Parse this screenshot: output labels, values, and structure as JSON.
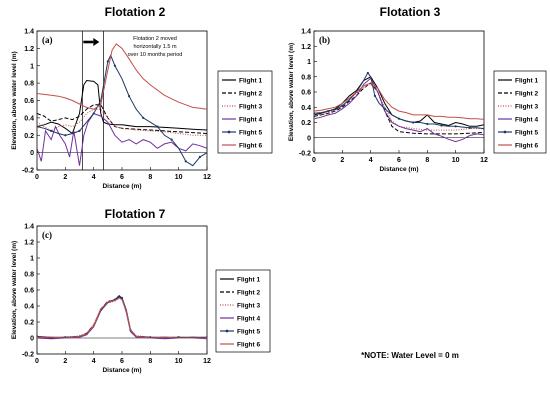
{
  "series_styles": [
    {
      "name": "Flight 1",
      "color": "#000000",
      "dash": "",
      "marker": false
    },
    {
      "name": "Flight 2",
      "color": "#000000",
      "dash": "4,2",
      "marker": false
    },
    {
      "name": "Flight 3",
      "color": "#c0504d",
      "dash": "1,1.5",
      "marker": false
    },
    {
      "name": "Flight 4",
      "color": "#7030a0",
      "dash": "",
      "marker": false
    },
    {
      "name": "Flight 5",
      "color": "#1f3864",
      "dash": "",
      "marker": true
    },
    {
      "name": "Flight 6",
      "color": "#c0504d",
      "dash": "",
      "marker": false
    }
  ],
  "note": "*NOTE: Water Level = 0 m",
  "chart_data": [
    {
      "type": "line",
      "title": "Flotation 2",
      "panel_label": "(a)",
      "annotation": [
        "Flotation  2 moved",
        "horizontally  1.5 m",
        "over 10 months  period"
      ],
      "xlabel": "Distance (m)",
      "ylabel": "Elevation, above water level (m)",
      "xlim": [
        0,
        12
      ],
      "ylim": [
        -0.2,
        1.4
      ],
      "xticks": [
        "0",
        "2",
        "4",
        "6",
        "8",
        "10",
        "12"
      ],
      "yticks": [
        "-0.2",
        "0",
        "0.2",
        "0.4",
        "0.6",
        "0.8",
        "1",
        "1.2",
        "1.4"
      ],
      "vlines_x": [
        3.2,
        4.7
      ],
      "legend_position": "right",
      "series": [
        {
          "name": "Flight 1",
          "x": [
            0,
            0.5,
            1,
            1.5,
            2,
            2.5,
            3,
            3.3,
            3.5,
            4,
            4.3,
            4.5,
            4.7,
            5,
            5.5,
            6,
            7,
            8,
            9,
            10,
            11,
            12
          ],
          "y": [
            0.3,
            0.32,
            0.35,
            0.33,
            0.28,
            0.22,
            0.45,
            0.78,
            0.83,
            0.82,
            0.78,
            0.45,
            0.35,
            0.33,
            0.32,
            0.32,
            0.3,
            0.3,
            0.29,
            0.28,
            0.27,
            0.26
          ]
        },
        {
          "name": "Flight 2",
          "x": [
            0,
            0.5,
            1,
            1.5,
            2,
            2.5,
            3,
            3.5,
            4,
            4.5,
            5,
            5.5,
            6,
            7,
            8,
            9,
            10,
            11,
            12
          ],
          "y": [
            0.45,
            0.42,
            0.36,
            0.38,
            0.4,
            0.38,
            0.42,
            0.5,
            0.55,
            0.55,
            0.4,
            0.3,
            0.28,
            0.27,
            0.26,
            0.25,
            0.24,
            0.23,
            0.22
          ]
        },
        {
          "name": "Flight 3",
          "x": [
            0,
            0.5,
            1,
            1.5,
            2,
            2.5,
            3,
            3.5,
            4,
            4.5,
            5,
            5.5,
            6,
            7,
            8,
            9,
            10,
            11,
            12
          ],
          "y": [
            0.35,
            0.3,
            0.25,
            0.3,
            0.32,
            0.3,
            0.35,
            0.45,
            0.5,
            0.5,
            0.4,
            0.3,
            0.28,
            0.26,
            0.25,
            0.24,
            0.22,
            0.2,
            0.2
          ]
        },
        {
          "name": "Flight 4",
          "x": [
            0,
            0.3,
            0.6,
            1,
            1.3,
            1.6,
            2,
            2.3,
            2.6,
            3,
            3.3,
            3.6,
            4,
            4.5,
            5,
            5.5,
            6,
            6.5,
            7,
            7.5,
            8,
            8.5,
            9,
            9.5,
            10,
            10.5,
            11,
            11.5,
            12
          ],
          "y": [
            0.05,
            -0.1,
            0.25,
            0.15,
            0.3,
            0.2,
            0.1,
            -0.05,
            0.25,
            -0.15,
            0.2,
            0.35,
            0.45,
            0.42,
            0.35,
            0.2,
            0.12,
            0.15,
            0.1,
            0.15,
            0.12,
            0.05,
            0.1,
            0.12,
            0.05,
            0.02,
            0.1,
            0.08,
            0.05
          ]
        },
        {
          "name": "Flight 5",
          "x": [
            0,
            0.5,
            1,
            1.5,
            2,
            2.5,
            3,
            3.5,
            4,
            4.5,
            5,
            5.2,
            5.5,
            6,
            6.5,
            7,
            7.5,
            8,
            8.5,
            9,
            9.5,
            10,
            10.5,
            11,
            11.5,
            12
          ],
          "y": [
            0.3,
            0.28,
            0.25,
            0.22,
            0.2,
            0.22,
            0.25,
            0.35,
            0.45,
            0.6,
            1.05,
            1.12,
            1.0,
            0.85,
            0.65,
            0.5,
            0.4,
            0.35,
            0.3,
            0.2,
            0.15,
            0.05,
            -0.1,
            -0.15,
            -0.05,
            0.0
          ]
        },
        {
          "name": "Flight 6",
          "x": [
            0,
            0.5,
            1,
            1.5,
            2,
            2.5,
            3,
            3.5,
            4,
            4.5,
            5,
            5.3,
            5.6,
            6,
            6.5,
            7,
            7.5,
            8,
            8.5,
            9,
            9.5,
            10,
            10.5,
            11,
            11.5,
            12
          ],
          "y": [
            0.68,
            0.67,
            0.66,
            0.65,
            0.63,
            0.6,
            0.56,
            0.52,
            0.5,
            0.55,
            0.95,
            1.18,
            1.25,
            1.2,
            1.08,
            0.95,
            0.85,
            0.78,
            0.72,
            0.66,
            0.62,
            0.58,
            0.55,
            0.52,
            0.51,
            0.5
          ]
        }
      ]
    },
    {
      "type": "line",
      "title": "Flotation 3",
      "panel_label": "(b)",
      "xlabel": "Distance (m)",
      "ylabel": "Elevation, above water level (m)",
      "xlim": [
        0,
        12
      ],
      "ylim": [
        -0.2,
        1.4
      ],
      "xticks": [
        "0",
        "2",
        "4",
        "6",
        "8",
        "10",
        "12"
      ],
      "yticks": [
        "-0.2",
        "0",
        "0.2",
        "0.4",
        "0.6",
        "0.8",
        "1",
        "1.2",
        "1.4"
      ],
      "legend_position": "right",
      "series": [
        {
          "name": "Flight 1",
          "x": [
            0,
            0.5,
            1,
            1.5,
            2,
            2.5,
            3,
            3.5,
            4,
            4.5,
            5,
            5.5,
            6,
            6.5,
            7,
            7.5,
            8,
            8.5,
            9,
            9.5,
            10,
            10.5,
            11,
            11.5,
            12
          ],
          "y": [
            0.3,
            0.32,
            0.35,
            0.38,
            0.45,
            0.55,
            0.62,
            0.75,
            0.8,
            0.65,
            0.45,
            0.3,
            0.25,
            0.22,
            0.2,
            0.22,
            0.3,
            0.2,
            0.18,
            0.16,
            0.2,
            0.18,
            0.15,
            0.15,
            0.17
          ]
        },
        {
          "name": "Flight 2",
          "x": [
            0,
            0.5,
            1,
            1.5,
            2,
            2.5,
            3,
            3.5,
            4,
            4.5,
            5,
            5.5,
            6,
            7,
            8,
            9,
            10,
            11,
            12
          ],
          "y": [
            0.28,
            0.3,
            0.32,
            0.35,
            0.4,
            0.48,
            0.55,
            0.65,
            0.72,
            0.6,
            0.35,
            0.15,
            0.08,
            0.06,
            0.05,
            0.05,
            0.05,
            0.06,
            0.07
          ]
        },
        {
          "name": "Flight 3",
          "x": [
            0,
            0.5,
            1,
            1.5,
            2,
            2.5,
            3,
            3.5,
            4,
            4.5,
            5,
            5.5,
            6,
            7,
            8,
            9,
            10,
            11,
            12
          ],
          "y": [
            0.3,
            0.3,
            0.33,
            0.36,
            0.42,
            0.5,
            0.58,
            0.66,
            0.7,
            0.6,
            0.4,
            0.22,
            0.15,
            0.12,
            0.1,
            0.1,
            0.1,
            0.12,
            0.12
          ]
        },
        {
          "name": "Flight 4",
          "x": [
            0,
            0.5,
            1,
            1.5,
            2,
            2.5,
            3,
            3.5,
            4,
            4.5,
            5,
            5.5,
            6,
            6.5,
            7,
            7.5,
            8,
            8.5,
            9,
            9.5,
            10,
            10.5,
            11,
            11.5,
            12
          ],
          "y": [
            0.25,
            0.27,
            0.3,
            0.32,
            0.38,
            0.45,
            0.55,
            0.7,
            0.78,
            0.6,
            0.35,
            0.2,
            0.15,
            0.12,
            0.1,
            0.08,
            0.12,
            0.05,
            0.02,
            -0.02,
            -0.05,
            -0.02,
            0.03,
            0.05,
            0.04
          ]
        },
        {
          "name": "Flight 5",
          "x": [
            0,
            0.5,
            1,
            1.5,
            2,
            2.5,
            3,
            3.5,
            3.8,
            4,
            4.3,
            4.6,
            5,
            5.5,
            6,
            6.5,
            7,
            7.5,
            8,
            8.5,
            9,
            9.5,
            10,
            10.5,
            11,
            11.5,
            12
          ],
          "y": [
            0.32,
            0.33,
            0.35,
            0.37,
            0.42,
            0.5,
            0.6,
            0.75,
            0.85,
            0.8,
            0.55,
            0.45,
            0.38,
            0.3,
            0.25,
            0.22,
            0.2,
            0.2,
            0.18,
            0.18,
            0.16,
            0.15,
            0.15,
            0.14,
            0.13,
            0.13,
            0.12
          ]
        },
        {
          "name": "Flight 6",
          "x": [
            0,
            0.5,
            1,
            1.5,
            2,
            2.5,
            3,
            3.5,
            4,
            4.5,
            5,
            5.5,
            6,
            6.5,
            7,
            7.5,
            8,
            8.5,
            9,
            9.5,
            10,
            10.5,
            11,
            11.5,
            12
          ],
          "y": [
            0.35,
            0.36,
            0.38,
            0.4,
            0.45,
            0.52,
            0.6,
            0.68,
            0.72,
            0.65,
            0.5,
            0.4,
            0.35,
            0.33,
            0.3,
            0.3,
            0.3,
            0.28,
            0.28,
            0.27,
            0.27,
            0.26,
            0.25,
            0.25,
            0.24
          ]
        }
      ]
    },
    {
      "type": "line",
      "title": "Flotation 7",
      "panel_label": "(c)",
      "xlabel": "Distance (m)",
      "ylabel": "Elevation, above water level (m)",
      "xlim": [
        0,
        12
      ],
      "ylim": [
        -0.2,
        1.4
      ],
      "xticks": [
        "0",
        "2",
        "4",
        "6",
        "8",
        "10",
        "12"
      ],
      "yticks": [
        "-0.2",
        "0",
        "0.2",
        "0.4",
        "0.6",
        "0.8",
        "1",
        "1.2",
        "1.4"
      ],
      "legend_position": "right",
      "series": [
        {
          "name": "Flight 1",
          "x": [
            0,
            1,
            2,
            3,
            3.5,
            4,
            4.5,
            5,
            5.5,
            5.8,
            6,
            6.3,
            6.6,
            7,
            8,
            9,
            10,
            11,
            12
          ],
          "y": [
            0.02,
            0.0,
            0.0,
            0.02,
            0.05,
            0.15,
            0.35,
            0.45,
            0.48,
            0.52,
            0.5,
            0.35,
            0.1,
            0.02,
            0.0,
            0.01,
            0.0,
            0.01,
            0.0
          ]
        },
        {
          "name": "Flight 2",
          "x": [
            0,
            1,
            2,
            3,
            3.5,
            4,
            4.5,
            5,
            5.5,
            5.8,
            6,
            6.3,
            6.6,
            7,
            8,
            9,
            10,
            11,
            12
          ],
          "y": [
            0.01,
            0.0,
            0.01,
            0.02,
            0.06,
            0.16,
            0.36,
            0.46,
            0.47,
            0.5,
            0.49,
            0.34,
            0.09,
            0.02,
            0.01,
            0.0,
            0.01,
            0.0,
            0.01
          ]
        },
        {
          "name": "Flight 3",
          "x": [
            0,
            1,
            2,
            3,
            3.5,
            4,
            4.5,
            5,
            5.5,
            5.8,
            6,
            6.3,
            6.6,
            7,
            8,
            9,
            10,
            11,
            12
          ],
          "y": [
            0.0,
            0.01,
            0.0,
            0.03,
            0.06,
            0.17,
            0.37,
            0.44,
            0.46,
            0.5,
            0.48,
            0.33,
            0.1,
            0.03,
            0.01,
            0.01,
            0.0,
            0.0,
            0.0
          ]
        },
        {
          "name": "Flight 4",
          "x": [
            0,
            1,
            2,
            3,
            3.5,
            4,
            4.5,
            5,
            5.5,
            5.8,
            6,
            6.3,
            6.6,
            7,
            8,
            9,
            10,
            11,
            12
          ],
          "y": [
            0.0,
            -0.01,
            0.0,
            0.01,
            0.04,
            0.14,
            0.34,
            0.44,
            0.47,
            0.51,
            0.49,
            0.32,
            0.08,
            0.01,
            0.0,
            -0.01,
            0.0,
            0.0,
            -0.01
          ]
        },
        {
          "name": "Flight 5",
          "x": [
            0,
            1,
            2,
            3,
            3.5,
            4,
            4.5,
            5,
            5.5,
            5.8,
            6,
            6.3,
            6.6,
            7,
            8,
            9,
            10,
            11,
            12
          ],
          "y": [
            0.02,
            0.01,
            0.01,
            0.02,
            0.05,
            0.15,
            0.35,
            0.45,
            0.48,
            0.53,
            0.5,
            0.35,
            0.1,
            0.02,
            0.01,
            0.01,
            0.01,
            0.01,
            0.01
          ]
        },
        {
          "name": "Flight 6",
          "x": [
            0,
            1,
            2,
            3,
            3.5,
            4,
            4.5,
            5,
            5.5,
            5.8,
            6,
            6.3,
            6.6,
            7,
            8,
            9,
            10,
            11,
            12
          ],
          "y": [
            0.01,
            0.01,
            0.0,
            0.02,
            0.05,
            0.15,
            0.36,
            0.45,
            0.47,
            0.5,
            0.48,
            0.34,
            0.1,
            0.02,
            0.0,
            0.01,
            0.0,
            0.0,
            0.0
          ]
        }
      ]
    }
  ]
}
